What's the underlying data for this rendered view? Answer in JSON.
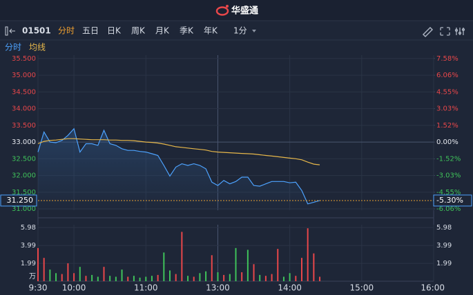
{
  "header": {
    "brand": "华盛通"
  },
  "toolbar": {
    "code": "01501",
    "tabs": [
      "分时",
      "五日",
      "日K",
      "周K",
      "月K",
      "季K",
      "年K"
    ],
    "active_tab": 0,
    "interval": "1分"
  },
  "chart_data": {
    "type": "line",
    "x": [
      "9:30",
      "9:35",
      "9:40",
      "9:45",
      "9:50",
      "9:55",
      "10:00",
      "10:05",
      "10:10",
      "10:15",
      "10:20",
      "10:25",
      "10:30",
      "10:35",
      "10:40",
      "10:45",
      "10:50",
      "10:55",
      "11:00",
      "11:05",
      "11:10",
      "11:15",
      "11:20",
      "11:25",
      "11:30",
      "11:35",
      "11:40",
      "11:45",
      "11:50",
      "11:55",
      "13:00",
      "13:05",
      "13:10",
      "13:15",
      "13:20",
      "13:25",
      "13:30",
      "13:35",
      "13:40",
      "13:45",
      "13:50",
      "13:55",
      "14:00",
      "14:05",
      "14:10",
      "14:15",
      "14:20",
      "14:25"
    ],
    "xlim": [
      "9:30",
      "16:00"
    ],
    "xticks": [
      "9:30",
      "10:00",
      "11:00",
      "13:00",
      "14:00",
      "15:00",
      "16:00"
    ],
    "series": [
      {
        "name": "分时",
        "color": "#4da3ff",
        "values": [
          32.7,
          33.3,
          33.0,
          32.98,
          33.05,
          33.2,
          33.4,
          32.7,
          32.95,
          32.95,
          32.9,
          33.35,
          32.95,
          32.9,
          32.8,
          32.75,
          32.75,
          32.72,
          32.7,
          32.65,
          32.6,
          32.3,
          31.98,
          32.25,
          32.35,
          32.3,
          32.35,
          32.3,
          32.2,
          31.8,
          31.7,
          31.85,
          31.75,
          31.82,
          31.95,
          31.95,
          31.7,
          31.68,
          31.75,
          31.82,
          31.82,
          31.82,
          31.78,
          31.8,
          31.55,
          31.15,
          31.2,
          31.25
        ]
      },
      {
        "name": "均线",
        "color": "#e8b84a",
        "values": [
          32.95,
          33.02,
          33.05,
          33.06,
          33.08,
          33.1,
          33.1,
          33.09,
          33.08,
          33.07,
          33.07,
          33.07,
          33.06,
          33.06,
          33.05,
          33.05,
          33.04,
          33.02,
          33.0,
          32.99,
          32.97,
          32.94,
          32.9,
          32.86,
          32.84,
          32.82,
          32.8,
          32.78,
          32.76,
          32.72,
          32.7,
          32.69,
          32.68,
          32.67,
          32.66,
          32.65,
          32.64,
          32.62,
          32.6,
          32.58,
          32.56,
          32.54,
          32.52,
          32.5,
          32.47,
          32.4,
          32.34,
          32.32
        ]
      }
    ],
    "ylim": [
      30.96,
      35.6
    ],
    "yticks": [
      {
        "value": 35.5,
        "label": "35.500"
      },
      {
        "value": 35,
        "label": "35.000"
      },
      {
        "value": 34.5,
        "label": "34.500"
      },
      {
        "value": 34,
        "label": "34.000"
      },
      {
        "value": 33.5,
        "label": "33.500"
      },
      {
        "value": 33,
        "label": "33.000"
      },
      {
        "value": 32.5,
        "label": "32.500"
      },
      {
        "value": 32,
        "label": "32.000"
      },
      {
        "value": 31.5,
        "label": "31.500"
      },
      {
        "value": 31,
        "label": "31.000"
      }
    ],
    "y2lim": [
      -6.18,
      7.88
    ],
    "y2ticks": [
      {
        "value": 7.58,
        "label": "7.58%"
      },
      {
        "value": 6.06,
        "label": "6.06%"
      },
      {
        "value": 4.55,
        "label": "4.55%"
      },
      {
        "value": 3.03,
        "label": "3.03%"
      },
      {
        "value": 1.52,
        "label": "1.52%"
      },
      {
        "value": 0,
        "label": "0.00%"
      },
      {
        "value": -1.52,
        "label": "-1.52%"
      },
      {
        "value": -3.03,
        "label": "-3.03%"
      },
      {
        "value": -4.55,
        "label": "-4.55%"
      },
      {
        "value": -6.06,
        "label": "-6.06%"
      }
    ],
    "current": {
      "value": 31.25,
      "label": "31.250"
    },
    "current_change": {
      "value": -5.3,
      "label": "-5.30%"
    },
    "up_color": "#e8474a",
    "down_color": "#3fc25a",
    "grid": true,
    "volume": {
      "values": [
        3.7,
        2.6,
        1.3,
        0.9,
        0.8,
        2.0,
        0.9,
        1.6,
        0.6,
        0.7,
        0.5,
        1.6,
        0.6,
        0.5,
        1.3,
        0.5,
        0.6,
        0.4,
        0.5,
        0.6,
        0.7,
        3.2,
        1.2,
        0.8,
        5.5,
        0.6,
        0.5,
        0.9,
        1.1,
        2.9,
        1.0,
        0.7,
        0.8,
        3.7,
        1.0,
        3.5,
        1.9,
        0.7,
        0.6,
        0.8,
        3.6,
        0.5,
        0.9,
        0.6,
        2.6,
        5.9,
        3.1,
        0.5
      ],
      "colors": [
        "#e8474a",
        "#e8474a",
        "#3fc25a",
        "#3fc25a",
        "#e8474a",
        "#e8474a",
        "#e8474a",
        "#3fc25a",
        "#e8474a",
        "#3fc25a",
        "#3fc25a",
        "#e8474a",
        "#3fc25a",
        "#3fc25a",
        "#3fc25a",
        "#e8474a",
        "#3fc25a",
        "#3fc25a",
        "#3fc25a",
        "#3fc25a",
        "#e8474a",
        "#3fc25a",
        "#3fc25a",
        "#e8474a",
        "#e8474a",
        "#3fc25a",
        "#e8474a",
        "#3fc25a",
        "#3fc25a",
        "#e8474a",
        "#3fc25a",
        "#e8474a",
        "#3fc25a",
        "#3fc25a",
        "#e8474a",
        "#3fc25a",
        "#e8474a",
        "#3fc25a",
        "#e8474a",
        "#e8474a",
        "#e8474a",
        "#3fc25a",
        "#3fc25a",
        "#e8474a",
        "#e8474a",
        "#e8474a",
        "#e8474a",
        "#e8474a"
      ],
      "ylim": [
        0,
        6.3
      ],
      "yticks": [
        1.99,
        3.99,
        5.98
      ],
      "unit": "万"
    }
  }
}
